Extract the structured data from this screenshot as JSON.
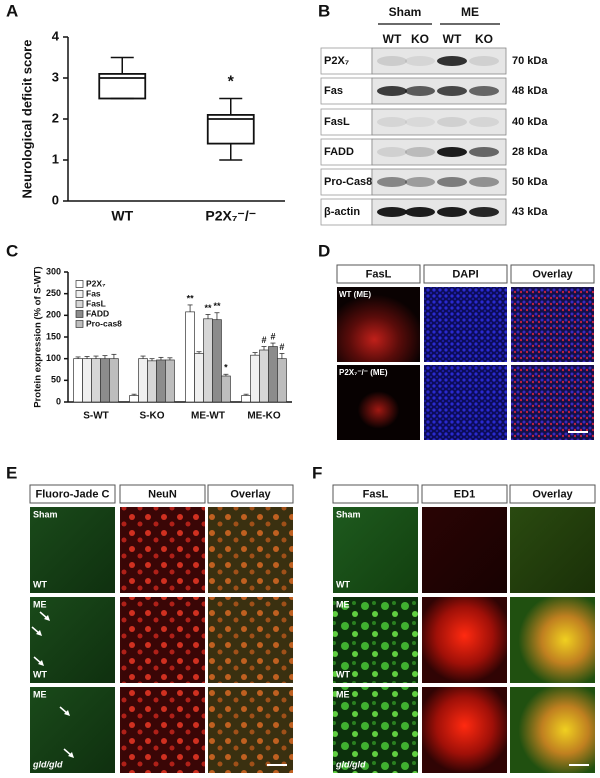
{
  "chart_data": [
    {
      "type": "box",
      "panel": "A",
      "ylabel": "Neurological deficit score",
      "categories": [
        "WT",
        "P2X₇⁻/⁻"
      ],
      "stats": {
        "min": [
          2.5,
          1.0
        ],
        "q1": [
          2.5,
          1.4
        ],
        "median": [
          3.0,
          2.0
        ],
        "q3": [
          3.1,
          2.1
        ],
        "max": [
          3.5,
          2.5
        ]
      },
      "annotations": [
        null,
        "*"
      ],
      "ylim": [
        0,
        4
      ],
      "yticks": [
        0,
        1,
        2,
        3,
        4
      ]
    },
    {
      "type": "bar",
      "panel": "C",
      "ylabel": "Protein expression (% of S-WT)",
      "categories": [
        "S-WT",
        "S-KO",
        "ME-WT",
        "ME-KO"
      ],
      "series": [
        {
          "name": "P2X₇",
          "color": "#ffffff",
          "values": [
            100,
            15,
            208,
            15
          ],
          "errors": [
            4,
            3,
            16,
            3
          ],
          "annotations": [
            null,
            null,
            "**",
            null
          ]
        },
        {
          "name": "Fas",
          "color": "#f0f0f0",
          "values": [
            100,
            100,
            112,
            108
          ],
          "errors": [
            5,
            6,
            4,
            6
          ],
          "annotations": [
            null,
            null,
            null,
            null
          ]
        },
        {
          "name": "FasL",
          "color": "#d6d6d6",
          "values": [
            100,
            95,
            192,
            120
          ],
          "errors": [
            6,
            5,
            10,
            8
          ],
          "annotations": [
            null,
            null,
            "**",
            "#"
          ]
        },
        {
          "name": "FADD",
          "color": "#8c8c8c",
          "values": [
            100,
            97,
            190,
            128
          ],
          "errors": [
            7,
            6,
            16,
            8
          ],
          "annotations": [
            null,
            null,
            "**",
            "#"
          ]
        },
        {
          "name": "Pro-cas8",
          "color": "#bdbdbd",
          "values": [
            100,
            97,
            60,
            100
          ],
          "errors": [
            10,
            5,
            4,
            12
          ],
          "annotations": [
            null,
            null,
            "*",
            "#"
          ]
        }
      ],
      "ylim": [
        0,
        300
      ],
      "yticks": [
        0,
        50,
        100,
        150,
        200,
        250,
        300
      ],
      "legend": "upper left"
    }
  ],
  "panel_b": {
    "label": "B",
    "groups": [
      "Sham",
      "ME"
    ],
    "lanes": [
      "WT",
      "KO",
      "WT",
      "KO"
    ],
    "rows": [
      {
        "name": "P2X₇",
        "size": "70 kDa"
      },
      {
        "name": "Fas",
        "size": "48 kDa"
      },
      {
        "name": "FasL",
        "size": "40 kDa"
      },
      {
        "name": "FADD",
        "size": "28 kDa"
      },
      {
        "name": "Pro-Cas8",
        "size": "50 kDa"
      },
      {
        "name": "β-actin",
        "size": "43 kDa"
      }
    ]
  },
  "panel_d": {
    "label": "D",
    "columns": [
      "FasL",
      "DAPI",
      "Overlay"
    ],
    "rows": [
      "WT (ME)",
      "P2X₇⁻/⁻ (ME)"
    ]
  },
  "panel_e": {
    "label": "E",
    "columns": [
      "Fluoro-Jade C",
      "NeuN",
      "Overlay"
    ],
    "rows": [
      [
        "Sham",
        "WT"
      ],
      [
        "ME",
        "WT"
      ],
      [
        "ME",
        "gld/gld"
      ]
    ]
  },
  "panel_f": {
    "label": "F",
    "columns": [
      "FasL",
      "ED1",
      "Overlay"
    ],
    "rows": [
      [
        "Sham",
        "WT"
      ],
      [
        "ME",
        "WT"
      ],
      [
        "ME",
        "gld/gld"
      ]
    ]
  }
}
